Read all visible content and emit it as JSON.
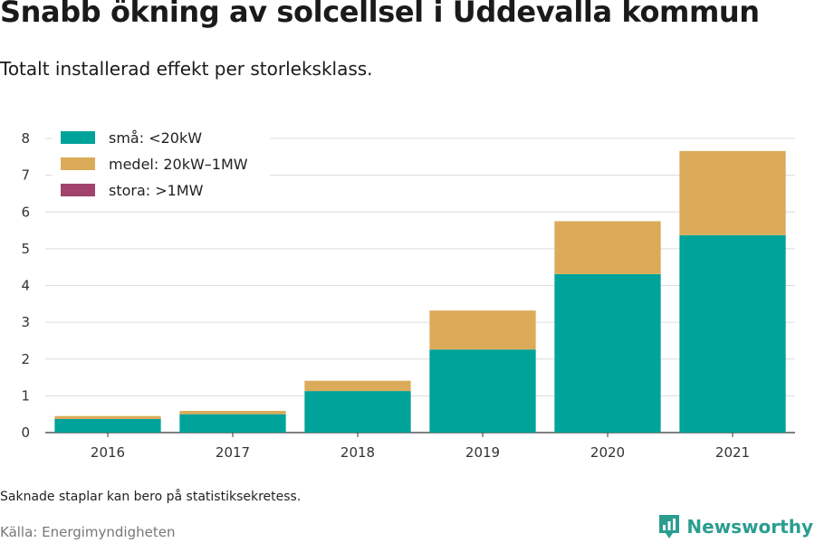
{
  "header": {
    "title": "Snabb ökning av solcellsel i Uddevalla kommun",
    "subtitle": "Totalt installerad effekt per storleksklass."
  },
  "footer": {
    "note": "Saknade staplar kan bero på statistiksekretess.",
    "source": "Källa: Energimyndigheten",
    "brand": "Newsworthy"
  },
  "colors": {
    "small": "#00a39a",
    "medium": "#dbab5a",
    "large": "#a2436d",
    "brand": "#2a9d8f"
  },
  "icons": {
    "logo": "newsworthy-logo-icon"
  },
  "chart_data": {
    "type": "bar",
    "stacked": true,
    "title": "Snabb ökning av solcellsel i Uddevalla kommun",
    "subtitle": "Totalt installerad effekt per storleksklass.",
    "xlabel": "",
    "ylabel": "",
    "categories": [
      "2016",
      "2017",
      "2018",
      "2019",
      "2020",
      "2021"
    ],
    "series": [
      {
        "name": "små: <20kW",
        "color": "#00a39a",
        "values": [
          0.37,
          0.5,
          1.13,
          2.26,
          4.31,
          5.37
        ]
      },
      {
        "name": "medel: 20kW–1MW",
        "color": "#dbab5a",
        "values": [
          0.08,
          0.09,
          0.28,
          1.06,
          1.44,
          2.29
        ]
      },
      {
        "name": "stora: >1MW",
        "color": "#a2436d",
        "values": [
          0,
          0,
          0,
          0,
          0,
          0
        ]
      }
    ],
    "ylim": [
      0,
      8
    ],
    "yticks": [
      0,
      1,
      2,
      3,
      4,
      5,
      6,
      7,
      8
    ],
    "grid": true,
    "legend": "top-left"
  }
}
